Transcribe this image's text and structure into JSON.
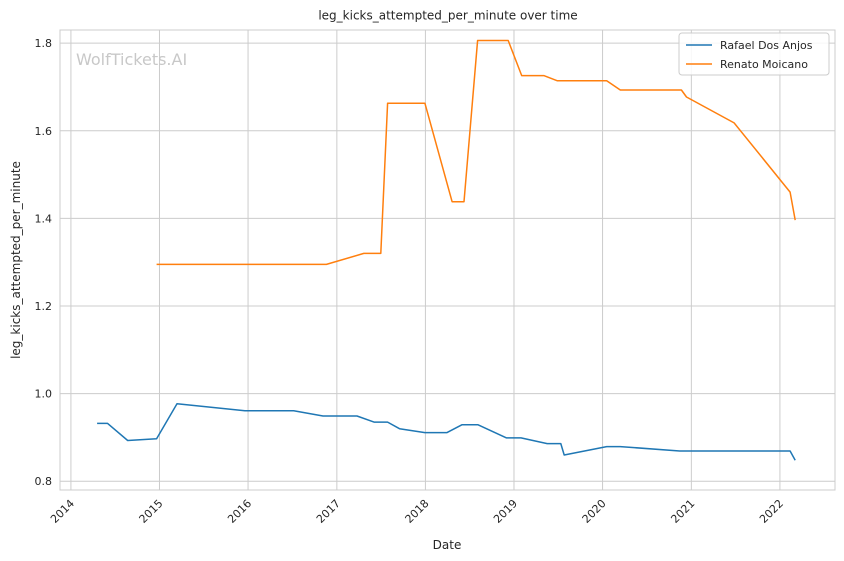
{
  "chart_data": {
    "type": "line",
    "title": "leg_kicks_attempted_per_minute over time",
    "xlabel": "Date",
    "ylabel": "leg_kicks_attempted_per_minute",
    "watermark": "WolfTickets.AI",
    "x_axis_type": "date",
    "xlim": [
      "2013-11-17",
      "2022-08-16"
    ],
    "ylim": [
      0.78,
      1.83
    ],
    "x_ticks": [
      "2014",
      "2015",
      "2016",
      "2017",
      "2018",
      "2019",
      "2020",
      "2021",
      "2022"
    ],
    "y_ticks": [
      "0.8",
      "1.0",
      "1.2",
      "1.4",
      "1.6",
      "1.8"
    ],
    "y_tick_values": [
      0.8,
      1.0,
      1.2,
      1.4,
      1.6,
      1.8
    ],
    "grid": true,
    "legend_position": "top-right",
    "series": [
      {
        "name": "Rafael Dos Anjos",
        "color": "#1f77b4",
        "points": [
          [
            "2014-04-19",
            0.932
          ],
          [
            "2014-06-01",
            0.932
          ],
          [
            "2014-08-23",
            0.893
          ],
          [
            "2014-12-20",
            0.897
          ],
          [
            "2015-03-14",
            0.977
          ],
          [
            "2015-12-19",
            0.961
          ],
          [
            "2016-07-07",
            0.961
          ],
          [
            "2016-11-05",
            0.949
          ],
          [
            "2017-03-25",
            0.949
          ],
          [
            "2017-06-03",
            0.935
          ],
          [
            "2017-07-29",
            0.935
          ],
          [
            "2017-09-16",
            0.92
          ],
          [
            "2017-12-30",
            0.911
          ],
          [
            "2018-03-31",
            0.911
          ],
          [
            "2018-06-01",
            0.929
          ],
          [
            "2018-08-05",
            0.929
          ],
          [
            "2018-12-01",
            0.899
          ],
          [
            "2019-01-30",
            0.899
          ],
          [
            "2019-05-18",
            0.886
          ],
          [
            "2019-07-13",
            0.886
          ],
          [
            "2019-07-27",
            0.86
          ],
          [
            "2020-01-18",
            0.879
          ],
          [
            "2020-03-14",
            0.879
          ],
          [
            "2020-11-14",
            0.869
          ],
          [
            "2022-02-12",
            0.869
          ],
          [
            "2022-03-05",
            0.848
          ]
        ]
      },
      {
        "name": "Renato Moicano",
        "color": "#ff7f0e",
        "points": [
          [
            "2014-12-20",
            1.295
          ],
          [
            "2016-11-19",
            1.295
          ],
          [
            "2017-04-22",
            1.32
          ],
          [
            "2017-07-01",
            1.32
          ],
          [
            "2017-07-29",
            1.663
          ],
          [
            "2017-12-30",
            1.663
          ],
          [
            "2018-04-21",
            1.438
          ],
          [
            "2018-06-09",
            1.438
          ],
          [
            "2018-08-04",
            1.806
          ],
          [
            "2018-12-08",
            1.806
          ],
          [
            "2019-02-02",
            1.726
          ],
          [
            "2019-05-04",
            1.726
          ],
          [
            "2019-06-29",
            1.714
          ],
          [
            "2020-01-18",
            1.714
          ],
          [
            "2020-03-14",
            1.693
          ],
          [
            "2020-11-21",
            1.693
          ],
          [
            "2020-12-12",
            1.677
          ],
          [
            "2021-06-26",
            1.618
          ],
          [
            "2022-02-12",
            1.46
          ],
          [
            "2022-03-05",
            1.396
          ]
        ]
      }
    ]
  }
}
